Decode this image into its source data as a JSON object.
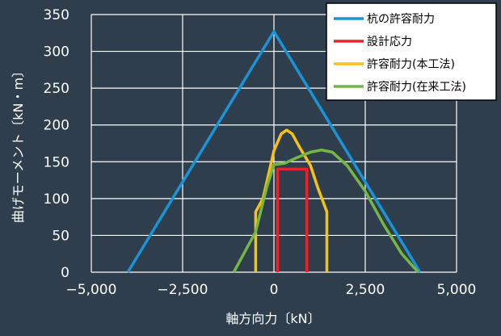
{
  "chart_data": {
    "type": "line",
    "title": "",
    "xlabel": "軸方向力〔kN〕",
    "ylabel": "曲げモーメント〔kN・m〕",
    "xlim": [
      -5000,
      5000
    ],
    "ylim": [
      0,
      350
    ],
    "x_ticks": [
      "−5,000",
      "−2,500",
      "0",
      "2,500",
      "5,000"
    ],
    "y_ticks": [
      "0",
      "50",
      "100",
      "150",
      "200",
      "250",
      "300",
      "350"
    ],
    "grid": true,
    "legend_position": "top-right",
    "series": [
      {
        "name": "杭の許容耐力",
        "color": "#1a93d8",
        "points": [
          [
            -4000,
            0
          ],
          [
            0,
            327
          ],
          [
            4000,
            0
          ]
        ]
      },
      {
        "name": "設計応力",
        "color": "#e8242a",
        "points": [
          [
            100,
            0
          ],
          [
            100,
            140
          ],
          [
            900,
            140
          ],
          [
            900,
            0
          ]
        ]
      },
      {
        "name": "許容耐力(本工法)",
        "color": "#f7c213",
        "points": [
          [
            -500,
            0
          ],
          [
            -500,
            82
          ],
          [
            -300,
            100
          ],
          [
            0,
            165
          ],
          [
            200,
            188
          ],
          [
            350,
            193
          ],
          [
            500,
            188
          ],
          [
            700,
            170
          ],
          [
            1000,
            145
          ],
          [
            1200,
            115
          ],
          [
            1450,
            82
          ],
          [
            1450,
            0
          ]
        ]
      },
      {
        "name": "許容耐力(在来工法)",
        "color": "#74b843",
        "points": [
          [
            -1100,
            0
          ],
          [
            -500,
            55
          ],
          [
            -200,
            115
          ],
          [
            0,
            146
          ],
          [
            300,
            148
          ],
          [
            600,
            155
          ],
          [
            1000,
            163
          ],
          [
            1300,
            166
          ],
          [
            1600,
            163
          ],
          [
            2000,
            145
          ],
          [
            2500,
            110
          ],
          [
            3000,
            65
          ],
          [
            3500,
            25
          ],
          [
            3950,
            0
          ]
        ]
      }
    ]
  }
}
